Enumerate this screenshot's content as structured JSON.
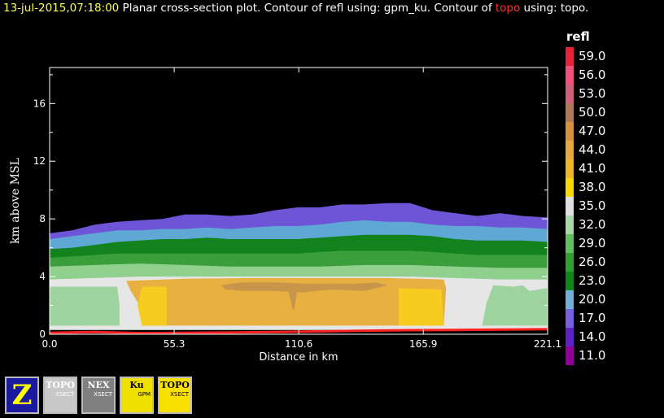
{
  "title": {
    "timestamp": "13-jul-2015,07:18:00",
    "part1": "  Planar cross-section plot.  Contour of refl using: gpm_ku.  Contour of ",
    "highlight": "topo",
    "part2": " using: topo."
  },
  "colors": {
    "topo_line": "#ff2020",
    "axis": "#ffffff",
    "background": "#000000"
  },
  "chart_data": {
    "type": "heatmap",
    "xlabel": "Distance in km",
    "ylabel": "km above MSL",
    "xlim": [
      0,
      221.1
    ],
    "ylim": [
      0,
      18.5
    ],
    "xticks": [
      "0.0",
      "55.3",
      "110.6",
      "165.9",
      "221.1"
    ],
    "xtick_values": [
      0,
      55.3,
      110.6,
      165.9,
      221.1
    ],
    "yticks": [
      "0",
      "4",
      "8",
      "12",
      "16"
    ],
    "ytick_values": [
      0,
      4,
      8,
      12,
      16
    ],
    "legend": {
      "title": "refl",
      "levels": [
        "59.0",
        "56.0",
        "53.0",
        "50.0",
        "47.0",
        "44.0",
        "41.0",
        "38.0",
        "35.0",
        "32.0",
        "29.0",
        "26.0",
        "23.0",
        "20.0",
        "17.0",
        "14.0",
        "11.0"
      ],
      "colors": [
        "#e8203a",
        "#f2507a",
        "#d0607a",
        "#b07858",
        "#d89040",
        "#e8a840",
        "#f0b828",
        "#f8d800",
        "#e0e0e0",
        "#a8d8a8",
        "#60c060",
        "#30a030",
        "#108818",
        "#70b0d8",
        "#7860e0",
        "#6020c8",
        "#900098"
      ]
    },
    "cloud_bands": [
      {
        "color": "#6e54d6",
        "top": [
          [
            0,
            7.0
          ],
          [
            10,
            7.2
          ],
          [
            20,
            7.6
          ],
          [
            30,
            7.8
          ],
          [
            40,
            7.9
          ],
          [
            50,
            8.0
          ],
          [
            60,
            8.3
          ],
          [
            70,
            8.3
          ],
          [
            80,
            8.2
          ],
          [
            90,
            8.3
          ],
          [
            100,
            8.6
          ],
          [
            110,
            8.8
          ],
          [
            120,
            8.8
          ],
          [
            130,
            9.0
          ],
          [
            140,
            9.0
          ],
          [
            150,
            9.1
          ],
          [
            160,
            9.1
          ],
          [
            170,
            8.6
          ],
          [
            180,
            8.4
          ],
          [
            190,
            8.2
          ],
          [
            200,
            8.4
          ],
          [
            210,
            8.2
          ],
          [
            221.1,
            8.1
          ]
        ]
      },
      {
        "color": "#5fa8d6",
        "top": [
          [
            0,
            6.6
          ],
          [
            10,
            6.8
          ],
          [
            20,
            7.0
          ],
          [
            30,
            7.2
          ],
          [
            40,
            7.2
          ],
          [
            50,
            7.3
          ],
          [
            60,
            7.3
          ],
          [
            70,
            7.4
          ],
          [
            80,
            7.3
          ],
          [
            90,
            7.4
          ],
          [
            100,
            7.5
          ],
          [
            110,
            7.5
          ],
          [
            120,
            7.6
          ],
          [
            130,
            7.8
          ],
          [
            140,
            7.9
          ],
          [
            150,
            7.8
          ],
          [
            160,
            7.8
          ],
          [
            170,
            7.6
          ],
          [
            180,
            7.5
          ],
          [
            190,
            7.5
          ],
          [
            200,
            7.4
          ],
          [
            210,
            7.4
          ],
          [
            221.1,
            7.3
          ]
        ]
      },
      {
        "color": "#12821c",
        "top": [
          [
            0,
            5.9
          ],
          [
            10,
            6.0
          ],
          [
            20,
            6.2
          ],
          [
            30,
            6.4
          ],
          [
            40,
            6.5
          ],
          [
            50,
            6.6
          ],
          [
            60,
            6.6
          ],
          [
            70,
            6.7
          ],
          [
            80,
            6.6
          ],
          [
            90,
            6.6
          ],
          [
            100,
            6.6
          ],
          [
            110,
            6.6
          ],
          [
            120,
            6.7
          ],
          [
            130,
            6.8
          ],
          [
            140,
            6.9
          ],
          [
            150,
            6.9
          ],
          [
            160,
            6.9
          ],
          [
            170,
            6.8
          ],
          [
            180,
            6.6
          ],
          [
            190,
            6.5
          ],
          [
            200,
            6.5
          ],
          [
            210,
            6.5
          ],
          [
            221.1,
            6.4
          ]
        ]
      },
      {
        "color": "#3a9e3a",
        "top": [
          [
            0,
            5.3
          ],
          [
            10,
            5.4
          ],
          [
            20,
            5.5
          ],
          [
            30,
            5.6
          ],
          [
            40,
            5.6
          ],
          [
            50,
            5.6
          ],
          [
            60,
            5.6
          ],
          [
            70,
            5.6
          ],
          [
            80,
            5.6
          ],
          [
            90,
            5.6
          ],
          [
            100,
            5.6
          ],
          [
            110,
            5.6
          ],
          [
            120,
            5.7
          ],
          [
            130,
            5.8
          ],
          [
            140,
            5.8
          ],
          [
            150,
            5.8
          ],
          [
            160,
            5.8
          ],
          [
            170,
            5.7
          ],
          [
            180,
            5.6
          ],
          [
            190,
            5.5
          ],
          [
            200,
            5.5
          ],
          [
            210,
            5.5
          ],
          [
            221.1,
            5.5
          ]
        ]
      },
      {
        "color": "#8fd08f",
        "top": [
          [
            0,
            4.7
          ],
          [
            20,
            4.8
          ],
          [
            40,
            4.9
          ],
          [
            60,
            4.8
          ],
          [
            80,
            4.7
          ],
          [
            100,
            4.7
          ],
          [
            120,
            4.7
          ],
          [
            140,
            4.8
          ],
          [
            160,
            4.8
          ],
          [
            180,
            4.7
          ],
          [
            200,
            4.6
          ],
          [
            221.1,
            4.6
          ]
        ]
      },
      {
        "color": "#e6e6e6",
        "top": [
          [
            0,
            3.8
          ],
          [
            20,
            3.9
          ],
          [
            40,
            4.0
          ],
          [
            60,
            4.0
          ],
          [
            80,
            4.0
          ],
          [
            100,
            4.0
          ],
          [
            120,
            4.0
          ],
          [
            140,
            4.0
          ],
          [
            160,
            4.0
          ],
          [
            180,
            3.9
          ],
          [
            200,
            3.8
          ],
          [
            221.1,
            3.8
          ]
        ]
      }
    ],
    "green_patches": [
      {
        "color": "#9ed29e",
        "points": [
          [
            0,
            0.6
          ],
          [
            0,
            3.3
          ],
          [
            30,
            3.3
          ],
          [
            31,
            2.0
          ],
          [
            31,
            0.6
          ]
        ]
      },
      {
        "color": "#9ed29e",
        "points": [
          [
            192,
            0.6
          ],
          [
            194,
            2.2
          ],
          [
            197,
            3.4
          ],
          [
            206,
            3.3
          ],
          [
            210,
            3.4
          ],
          [
            213,
            3.0
          ],
          [
            221.1,
            3.2
          ],
          [
            221.1,
            0.6
          ]
        ]
      }
    ],
    "core_bands": [
      {
        "color": "#e8b040",
        "points": [
          [
            34,
            3.7
          ],
          [
            60,
            3.85
          ],
          [
            90,
            3.9
          ],
          [
            120,
            3.9
          ],
          [
            150,
            3.9
          ],
          [
            175,
            3.8
          ],
          [
            176,
            3.2
          ],
          [
            175,
            0.6
          ],
          [
            41,
            0.6
          ],
          [
            40,
            2.0
          ],
          [
            36,
            3.0
          ]
        ]
      },
      {
        "color": "#f6cc20",
        "points": [
          [
            41,
            3.3
          ],
          [
            52,
            3.3
          ],
          [
            52,
            0.6
          ],
          [
            41,
            0.6
          ],
          [
            39,
            2.0
          ]
        ]
      },
      {
        "color": "#f6cc20",
        "points": [
          [
            155,
            3.2
          ],
          [
            174,
            3.1
          ],
          [
            175,
            0.6
          ],
          [
            155,
            0.6
          ]
        ]
      },
      {
        "color": "#c8964a",
        "points": [
          [
            76,
            3.4
          ],
          [
            85,
            3.6
          ],
          [
            100,
            3.6
          ],
          [
            115,
            3.5
          ],
          [
            125,
            3.5
          ],
          [
            135,
            3.5
          ],
          [
            145,
            3.6
          ],
          [
            150,
            3.4
          ],
          [
            140,
            3.0
          ],
          [
            125,
            3.1
          ],
          [
            112,
            2.9
          ],
          [
            100,
            3.0
          ],
          [
            86,
            3.0
          ],
          [
            78,
            3.1
          ]
        ]
      },
      {
        "color": "#c8964a",
        "points": [
          [
            106,
            3.0
          ],
          [
            110,
            3.0
          ],
          [
            108.5,
            1.7
          ],
          [
            108,
            1.7
          ]
        ]
      }
    ],
    "topo": [
      [
        0,
        0.1
      ],
      [
        20,
        0.15
      ],
      [
        40,
        0.08
      ],
      [
        60,
        0.1
      ],
      [
        80,
        0.12
      ],
      [
        100,
        0.16
      ],
      [
        120,
        0.2
      ],
      [
        140,
        0.25
      ],
      [
        160,
        0.28
      ],
      [
        180,
        0.3
      ],
      [
        200,
        0.32
      ],
      [
        221.1,
        0.35
      ]
    ]
  },
  "toolbar": {
    "buttons": [
      {
        "name": "zoom-button",
        "label": "Z",
        "bg": "#1a1aa0",
        "fg": "#ffff00"
      },
      {
        "name": "topo-xsect-button",
        "label": "TOPO",
        "sub": "XSECT",
        "bg": "#c8c8c8",
        "fg": "#ffffff"
      },
      {
        "name": "xsect-nex-button",
        "label": "NEX",
        "sub": "XSECT",
        "bg": "#808080",
        "fg": "#ffffff"
      },
      {
        "name": "ku-gpm-xsect-button",
        "label": "Ku",
        "sub": "GPM",
        "bg": "#f0e000",
        "fg": "#000000"
      },
      {
        "name": "topo-xsect-yellow-button",
        "label": "TOPO",
        "sub": "XSECT",
        "bg": "#f8e000",
        "fg": "#000000"
      }
    ]
  }
}
